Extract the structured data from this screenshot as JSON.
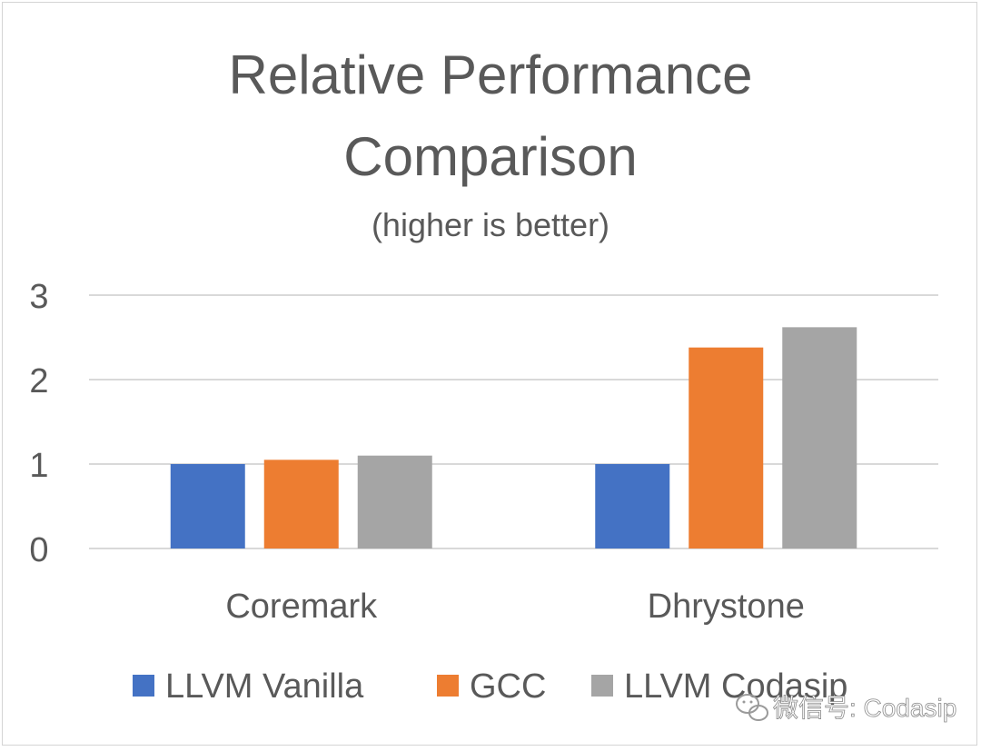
{
  "chart_data": {
    "type": "bar",
    "title": "Relative Performance Comparison",
    "title_lines": [
      "Relative Performance",
      "Comparison"
    ],
    "subtitle": "(higher is better)",
    "xlabel": "",
    "ylabel": "",
    "ylim": [
      0,
      3
    ],
    "yticks": [
      "0",
      "1",
      "2",
      "3"
    ],
    "grid": true,
    "legend_position": "bottom",
    "categories": [
      "Coremark",
      "Dhrystone"
    ],
    "series": [
      {
        "name": "LLVM Vanilla",
        "color": "#4472C4",
        "values": [
          1.0,
          1.0
        ]
      },
      {
        "name": "GCC",
        "color": "#ED7D31",
        "values": [
          1.05,
          2.38
        ]
      },
      {
        "name": "LLVM Codasip",
        "color": "#A5A5A5",
        "values": [
          1.1,
          2.62
        ]
      }
    ]
  },
  "watermark": {
    "text": "微信号: Codasip",
    "icon": "wechat-icon"
  },
  "colors": {
    "text": "#595959",
    "grid": "#d9d9d9"
  }
}
